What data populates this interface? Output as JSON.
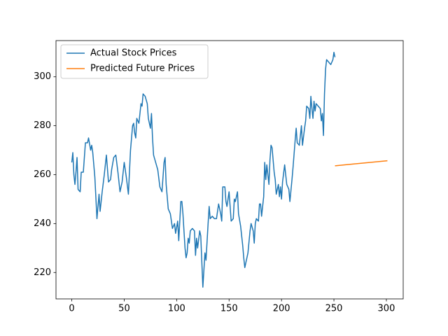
{
  "chart_data": {
    "type": "line",
    "series": [
      {
        "name": "Actual Stock Prices",
        "color": "#1f77b4",
        "x": [
          0,
          1,
          2,
          3,
          4,
          5,
          6,
          8,
          9,
          11,
          13,
          15,
          16,
          18,
          19,
          20,
          22,
          24,
          26,
          27,
          29,
          31,
          33,
          35,
          37,
          38,
          40,
          42,
          44,
          46,
          48,
          50,
          51,
          52,
          54,
          56,
          58,
          59,
          60,
          61,
          62,
          64,
          66,
          67,
          68,
          70,
          72,
          73,
          75,
          76,
          77,
          78,
          80,
          82,
          84,
          86,
          88,
          89,
          90,
          92,
          94,
          95,
          96,
          98,
          99,
          101,
          102,
          104,
          105,
          106,
          108,
          109,
          110,
          111,
          112,
          113,
          115,
          117,
          118,
          119,
          120,
          122,
          123,
          125,
          127,
          128,
          130,
          131,
          132,
          134,
          136,
          138,
          139,
          140,
          142,
          143,
          144,
          146,
          147,
          148,
          150,
          152,
          154,
          155,
          156,
          158,
          159,
          161,
          163,
          164,
          165,
          167,
          168,
          170,
          171,
          173,
          174,
          175,
          176,
          178,
          179,
          180,
          181,
          183,
          184,
          185,
          186,
          188,
          189,
          190,
          191,
          193,
          194,
          195,
          197,
          198,
          199,
          200,
          201,
          203,
          204,
          205,
          207,
          208,
          210,
          211,
          213,
          214,
          215,
          217,
          218,
          219,
          220,
          222,
          223,
          224,
          226,
          227,
          228,
          229,
          230,
          231,
          232,
          233,
          235,
          237,
          238,
          239,
          240,
          241,
          242,
          243,
          245,
          247,
          249,
          250,
          251
        ],
        "values": [
          265,
          269,
          260,
          256,
          261,
          267,
          254,
          253,
          261,
          261,
          273,
          273,
          275,
          270,
          272,
          269,
          259,
          242,
          252,
          245,
          253,
          260,
          268,
          257,
          258,
          262,
          267,
          268,
          261,
          253,
          257,
          265,
          262,
          259,
          252,
          270,
          280,
          281,
          277,
          275,
          283,
          281,
          289,
          288,
          293,
          292,
          289,
          283,
          279,
          285,
          275,
          268,
          265,
          262,
          255,
          253,
          265,
          267,
          256,
          246,
          244,
          241,
          238,
          240,
          236,
          241,
          233,
          249,
          249,
          244,
          230,
          226,
          228,
          234,
          232,
          237,
          238,
          237,
          227,
          234,
          230,
          237,
          235,
          214,
          228,
          225,
          240,
          247,
          242,
          243,
          242,
          242,
          245,
          248,
          244,
          241,
          255,
          255,
          249,
          247,
          253,
          241,
          242,
          250,
          249,
          253,
          244,
          239,
          231,
          226,
          222,
          226,
          228,
          237,
          240,
          237,
          232,
          240,
          242,
          241,
          248,
          248,
          243,
          251,
          265,
          258,
          264,
          256,
          266,
          272,
          271,
          261,
          258,
          252,
          256,
          251,
          255,
          250,
          257,
          264,
          260,
          256,
          254,
          249,
          258,
          263,
          274,
          279,
          273,
          272,
          276,
          280,
          272,
          279,
          282,
          288,
          287,
          283,
          292,
          287,
          283,
          290,
          286,
          289,
          288,
          287,
          282,
          285,
          276,
          293,
          303,
          307,
          306,
          305,
          307,
          310,
          308
        ]
      },
      {
        "name": "Predicted Future Prices",
        "color": "#ff7f0e",
        "x": [
          251,
          301
        ],
        "values": [
          263.6,
          265.7
        ]
      }
    ],
    "xlim": [
      -15.05,
      316.05
    ],
    "ylim": [
      209.2,
      314.8
    ],
    "xticks": [
      0,
      50,
      100,
      150,
      200,
      250,
      300
    ],
    "yticks": [
      220,
      240,
      260,
      280,
      300
    ],
    "legend": "upper left"
  }
}
